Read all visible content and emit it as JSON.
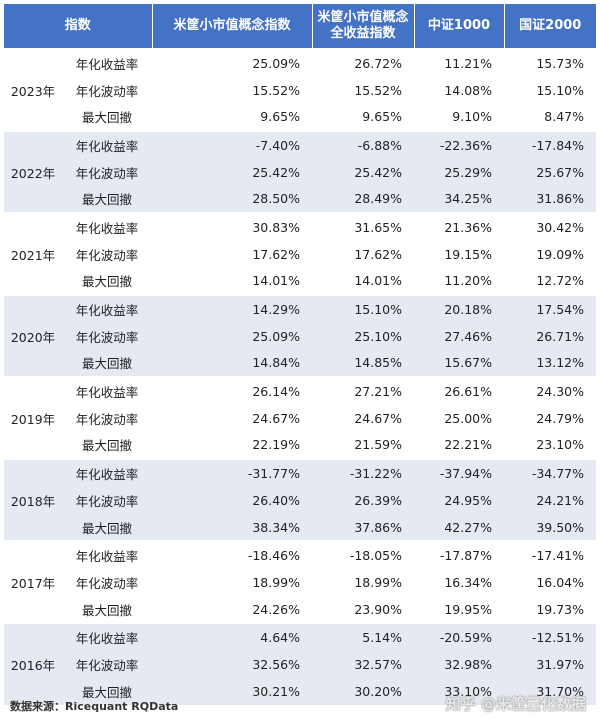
{
  "headers": [
    "指数",
    "米筐小市值概念指数",
    "米筐小市值概念\n全收益指数",
    "中证1000",
    "国证2000"
  ],
  "metrics": [
    "年化收益率",
    "年化波动率",
    "最大回撤"
  ],
  "groups": [
    {
      "year": "2023年",
      "rows": [
        [
          "25.09%",
          "26.72%",
          "11.21%",
          "15.73%"
        ],
        [
          "15.52%",
          "15.52%",
          "14.08%",
          "15.10%"
        ],
        [
          "9.65%",
          "9.65%",
          "9.10%",
          "8.47%"
        ]
      ]
    },
    {
      "year": "2022年",
      "rows": [
        [
          "-7.40%",
          "-6.88%",
          "-22.36%",
          "-17.84%"
        ],
        [
          "25.42%",
          "25.42%",
          "25.29%",
          "25.67%"
        ],
        [
          "28.50%",
          "28.49%",
          "34.25%",
          "31.86%"
        ]
      ]
    },
    {
      "year": "2021年",
      "rows": [
        [
          "30.83%",
          "31.65%",
          "21.36%",
          "30.42%"
        ],
        [
          "17.62%",
          "17.62%",
          "19.15%",
          "19.09%"
        ],
        [
          "14.01%",
          "14.01%",
          "11.20%",
          "12.72%"
        ]
      ]
    },
    {
      "year": "2020年",
      "rows": [
        [
          "14.29%",
          "15.10%",
          "20.18%",
          "17.54%"
        ],
        [
          "25.09%",
          "25.10%",
          "27.46%",
          "26.71%"
        ],
        [
          "14.84%",
          "14.85%",
          "15.67%",
          "13.12%"
        ]
      ]
    },
    {
      "year": "2019年",
      "rows": [
        [
          "26.14%",
          "27.21%",
          "26.61%",
          "24.30%"
        ],
        [
          "24.67%",
          "24.67%",
          "25.00%",
          "24.79%"
        ],
        [
          "22.19%",
          "21.59%",
          "22.21%",
          "23.10%"
        ]
      ]
    },
    {
      "year": "2018年",
      "rows": [
        [
          "-31.77%",
          "-31.22%",
          "-37.94%",
          "-34.77%"
        ],
        [
          "26.40%",
          "26.39%",
          "24.95%",
          "24.21%"
        ],
        [
          "38.34%",
          "37.86%",
          "42.27%",
          "39.50%"
        ]
      ]
    },
    {
      "year": "2017年",
      "rows": [
        [
          "-18.46%",
          "-18.05%",
          "-17.87%",
          "-17.41%"
        ],
        [
          "18.99%",
          "18.99%",
          "16.34%",
          "16.04%"
        ],
        [
          "24.26%",
          "23.90%",
          "19.95%",
          "19.73%"
        ]
      ]
    },
    {
      "year": "2016年",
      "rows": [
        [
          "4.64%",
          "5.14%",
          "-20.59%",
          "-12.51%"
        ],
        [
          "32.56%",
          "32.57%",
          "32.98%",
          "31.97%"
        ],
        [
          "30.21%",
          "30.20%",
          "33.10%",
          "31.70%"
        ]
      ]
    }
  ],
  "footer": {
    "source": "数据来源：Ricequant RQData",
    "watermark": "知乎 @米筐量化数据"
  }
}
